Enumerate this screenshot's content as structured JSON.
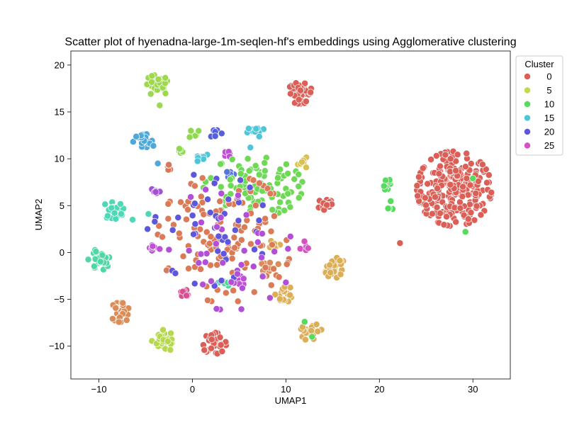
{
  "chart_data": {
    "type": "scatter",
    "title": "Scatter plot of hyenadna-large-1m-seqlen-hf's embeddings using Agglomerative clustering",
    "xlabel": "UMAP1",
    "ylabel": "UMAP2",
    "xlim": [
      -13,
      34
    ],
    "ylim": [
      -13.5,
      21.5
    ],
    "xticks": [
      -10,
      0,
      10,
      20,
      30
    ],
    "yticks": [
      -10,
      -5,
      0,
      5,
      10,
      15,
      20
    ],
    "grid": false,
    "legend": {
      "title": "Cluster",
      "placement": "outside-top-right",
      "entries": [
        {
          "label": "0",
          "color": "#db5f57"
        },
        {
          "label": "5",
          "color": "#c5d84f"
        },
        {
          "label": "10",
          "color": "#57db5f"
        },
        {
          "label": "15",
          "color": "#4fc5d8"
        },
        {
          "label": "20",
          "color": "#5f57db"
        },
        {
          "label": "25",
          "color": "#d84fc5"
        }
      ]
    },
    "point_edge_color": "#ffffff",
    "clusters": [
      {
        "cx": 28.0,
        "cy": 6.8,
        "sx": 2.1,
        "sy": 2.1,
        "n": 260,
        "color": "#db5f57"
      },
      {
        "cx": 11.5,
        "cy": 17.0,
        "sx": 0.7,
        "sy": 0.6,
        "n": 40,
        "color": "#db5f57"
      },
      {
        "cx": 2.3,
        "cy": -9.7,
        "sx": 0.7,
        "sy": 0.6,
        "n": 35,
        "color": "#db5f57"
      },
      {
        "cx": 14.3,
        "cy": 5.1,
        "sx": 0.5,
        "sy": 0.5,
        "n": 18,
        "color": "#db5f57"
      },
      {
        "cx": -3.0,
        "cy": -9.4,
        "sx": 0.7,
        "sy": 0.6,
        "n": 30,
        "color": "#b6d84f"
      },
      {
        "cx": -3.8,
        "cy": 17.8,
        "sx": 0.7,
        "sy": 0.6,
        "n": 35,
        "color": "#9ed84f"
      },
      {
        "cx": 15.3,
        "cy": -1.7,
        "sx": 0.6,
        "sy": 0.6,
        "n": 28,
        "color": "#dbae57"
      },
      {
        "cx": 12.7,
        "cy": -8.5,
        "sx": 0.6,
        "sy": 0.5,
        "n": 24,
        "color": "#dbae57"
      },
      {
        "cx": 9.8,
        "cy": -4.4,
        "sx": 0.5,
        "sy": 0.5,
        "n": 18,
        "color": "#dbae57"
      },
      {
        "cx": 12.0,
        "cy": 9.6,
        "sx": 0.4,
        "sy": 0.3,
        "n": 8,
        "color": "#d8c24f"
      },
      {
        "cx": -7.7,
        "cy": -6.3,
        "sx": 0.6,
        "sy": 0.6,
        "n": 28,
        "color": "#db8c57"
      },
      {
        "cx": -10.0,
        "cy": -0.8,
        "sx": 0.6,
        "sy": 0.6,
        "n": 28,
        "color": "#4fd8a6"
      },
      {
        "cx": -8.5,
        "cy": 4.5,
        "sx": 0.6,
        "sy": 0.5,
        "n": 20,
        "color": "#4fd8b6"
      },
      {
        "cx": -5.2,
        "cy": 11.8,
        "sx": 0.6,
        "sy": 0.5,
        "n": 26,
        "color": "#4fa8d8"
      },
      {
        "cx": 6.8,
        "cy": 12.9,
        "sx": 0.5,
        "sy": 0.3,
        "n": 10,
        "color": "#4fc5d8"
      },
      {
        "cx": -4.2,
        "cy": 0.5,
        "sx": 0.4,
        "sy": 0.3,
        "n": 10,
        "color": "#c04fd8"
      },
      {
        "cx": -4.0,
        "cy": 6.5,
        "sx": 0.3,
        "sy": 0.3,
        "n": 7,
        "color": "#a44fd8"
      },
      {
        "cx": -0.8,
        "cy": -4.4,
        "sx": 0.4,
        "sy": 0.3,
        "n": 9,
        "color": "#d84f8f"
      },
      {
        "cx": 4.0,
        "cy": 10.5,
        "sx": 0.3,
        "sy": 0.2,
        "n": 5,
        "color": "#c04fd8"
      },
      {
        "cx": 3.9,
        "cy": 8.5,
        "sx": 0.3,
        "sy": 0.3,
        "n": 6,
        "color": "#5776db"
      },
      {
        "cx": 2.5,
        "cy": 12.8,
        "sx": 0.4,
        "sy": 0.3,
        "n": 6,
        "color": "#5760db"
      },
      {
        "cx": 0.2,
        "cy": 12.7,
        "sx": 0.4,
        "sy": 0.3,
        "n": 6,
        "color": "#8fd84f"
      },
      {
        "cx": -1.2,
        "cy": 11.0,
        "sx": 0.4,
        "sy": 0.2,
        "n": 6,
        "color": "#8fd84f"
      },
      {
        "cx": 1.0,
        "cy": 10.2,
        "sx": 0.4,
        "sy": 0.3,
        "n": 7,
        "color": "#4fc5d8"
      },
      {
        "cx": -2.5,
        "cy": 8.8,
        "sx": 0.3,
        "sy": 0.3,
        "n": 5,
        "color": "#db7557"
      },
      {
        "cx": 3.7,
        "cy": -3.3,
        "sx": 0.5,
        "sy": 0.4,
        "n": 12,
        "color": "#4fd899"
      },
      {
        "cx": 5.0,
        "cy": -3.1,
        "sx": 0.3,
        "sy": 0.3,
        "n": 6,
        "color": "#c04fd8"
      },
      {
        "cx": 20.8,
        "cy": 7.3,
        "sx": 0.3,
        "sy": 0.5,
        "n": 8,
        "color": "#57db5f"
      },
      {
        "cx": 21.2,
        "cy": 5.5,
        "sx": 0.2,
        "sy": 0.6,
        "n": 4,
        "color": "#57db5f"
      },
      {
        "cx": 8.8,
        "cy": 0.8,
        "sx": 0.3,
        "sy": 0.3,
        "n": 7,
        "color": "#dbae57"
      },
      {
        "cx": 8.3,
        "cy": -1.5,
        "sx": 0.5,
        "sy": 0.4,
        "n": 8,
        "color": "#db8c57"
      },
      {
        "cx": 12.0,
        "cy": 1.0,
        "sx": 0.4,
        "sy": 0.4,
        "n": 5,
        "color": "#d84fc5"
      },
      {
        "cx": 6.5,
        "cy": 7.0,
        "sx": 2.8,
        "sy": 1.7,
        "n": 90,
        "color": "#6fd857"
      },
      {
        "cx": 3.5,
        "cy": 1.5,
        "sx": 3.8,
        "sy": 3.6,
        "n": 130,
        "color": "#db7a57"
      },
      {
        "cx": 2.0,
        "cy": 2.5,
        "sx": 3.2,
        "sy": 3.2,
        "n": 45,
        "color": "#5f57db"
      },
      {
        "cx": 4.0,
        "cy": 0.5,
        "sx": 3.8,
        "sy": 3.5,
        "n": 40,
        "color": "#b24fd8"
      }
    ],
    "extra_points": [
      {
        "x": 22.2,
        "y": 1.0,
        "color": "#db5f57"
      },
      {
        "x": 29.2,
        "y": 2.2,
        "color": "#57db5f"
      },
      {
        "x": 30.0,
        "y": 7.9,
        "color": "#57db5f"
      },
      {
        "x": 12.0,
        "y": -7.4,
        "color": "#57db5f"
      },
      {
        "x": 12.8,
        "y": -9.0,
        "color": "#57db5f"
      },
      {
        "x": -3.5,
        "y": 15.7,
        "color": "#9ed84f"
      },
      {
        "x": -4.7,
        "y": 4.1,
        "color": "#4fd8b6"
      },
      {
        "x": -6.4,
        "y": 3.5,
        "color": "#4fd8b6"
      },
      {
        "x": -3.7,
        "y": 9.5,
        "color": "#4fa8d8"
      },
      {
        "x": -4.8,
        "y": 2.5,
        "color": "#5f57db"
      },
      {
        "x": 6.2,
        "y": 11.2,
        "color": "#4fc5d8"
      }
    ]
  }
}
